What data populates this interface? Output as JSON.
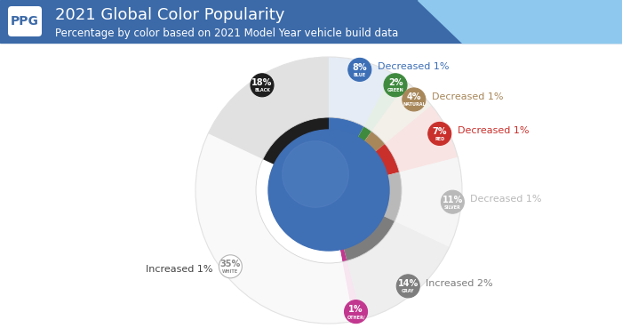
{
  "chart_data": {
    "type": "pie",
    "logo": "PPG",
    "title": "2021 Global Color Popularity",
    "subtitle": "Percentage by color based on 2021 Model Year vehicle build data",
    "categories": [
      "BLUE",
      "GREEN",
      "NATURAL",
      "RED",
      "SILVER",
      "GRAY",
      "OTHER/",
      "WHITE",
      "BLACK"
    ],
    "values": [
      8,
      2,
      4,
      7,
      11,
      14,
      1,
      35,
      18
    ],
    "value_labels": [
      "8%",
      "2%",
      "4%",
      "7%",
      "11%",
      "14%",
      "1%",
      "35%",
      "18%"
    ],
    "colors": [
      "#3d6fb6",
      "#3f8a3f",
      "#a8875a",
      "#c9302c",
      "#b9b9b9",
      "#7d7d7d",
      "#c2378f",
      "#ffffff",
      "#1e1e1e"
    ],
    "annotations": [
      "Decreased 1%",
      null,
      "Decreased 1%",
      "Decreased 1%",
      "Decreased 1%",
      "Increased 2%",
      null,
      "Increased 1%",
      null
    ],
    "data_labels": true
  }
}
